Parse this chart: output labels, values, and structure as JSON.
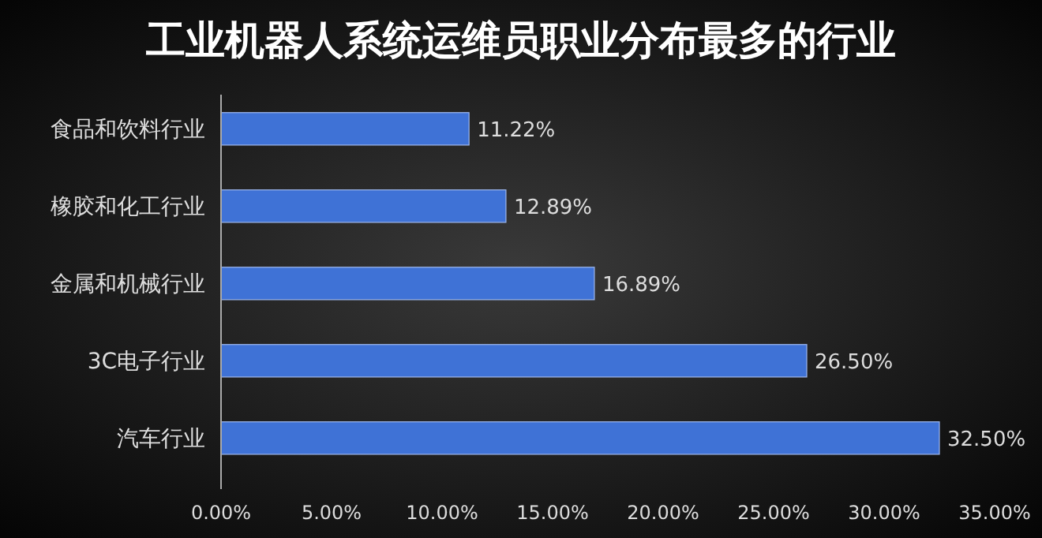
{
  "chart_data": {
    "type": "bar",
    "orientation": "horizontal",
    "title": "工业机器人系统运维员职业分布最多的行业",
    "categories": [
      "食品和饮料行业",
      "橡胶和化工行业",
      "金属和机械行业",
      "3C电子行业",
      "汽车行业"
    ],
    "values": [
      11.22,
      12.89,
      16.89,
      26.5,
      32.5
    ],
    "value_labels": [
      "11.22%",
      "12.89%",
      "16.89%",
      "26.50%",
      "32.50%"
    ],
    "color": "#3f72d6",
    "xlim": [
      0,
      35
    ],
    "xticks": [
      {
        "value": 0,
        "label": "0.00%"
      },
      {
        "value": 5,
        "label": "5.00%"
      },
      {
        "value": 10,
        "label": "10.00%"
      },
      {
        "value": 15,
        "label": "15.00%"
      },
      {
        "value": 20,
        "label": "20.00%"
      },
      {
        "value": 25,
        "label": "25.00%"
      },
      {
        "value": 30,
        "label": "30.00%"
      },
      {
        "value": 35,
        "label": "35.00%"
      }
    ],
    "grid": false
  }
}
